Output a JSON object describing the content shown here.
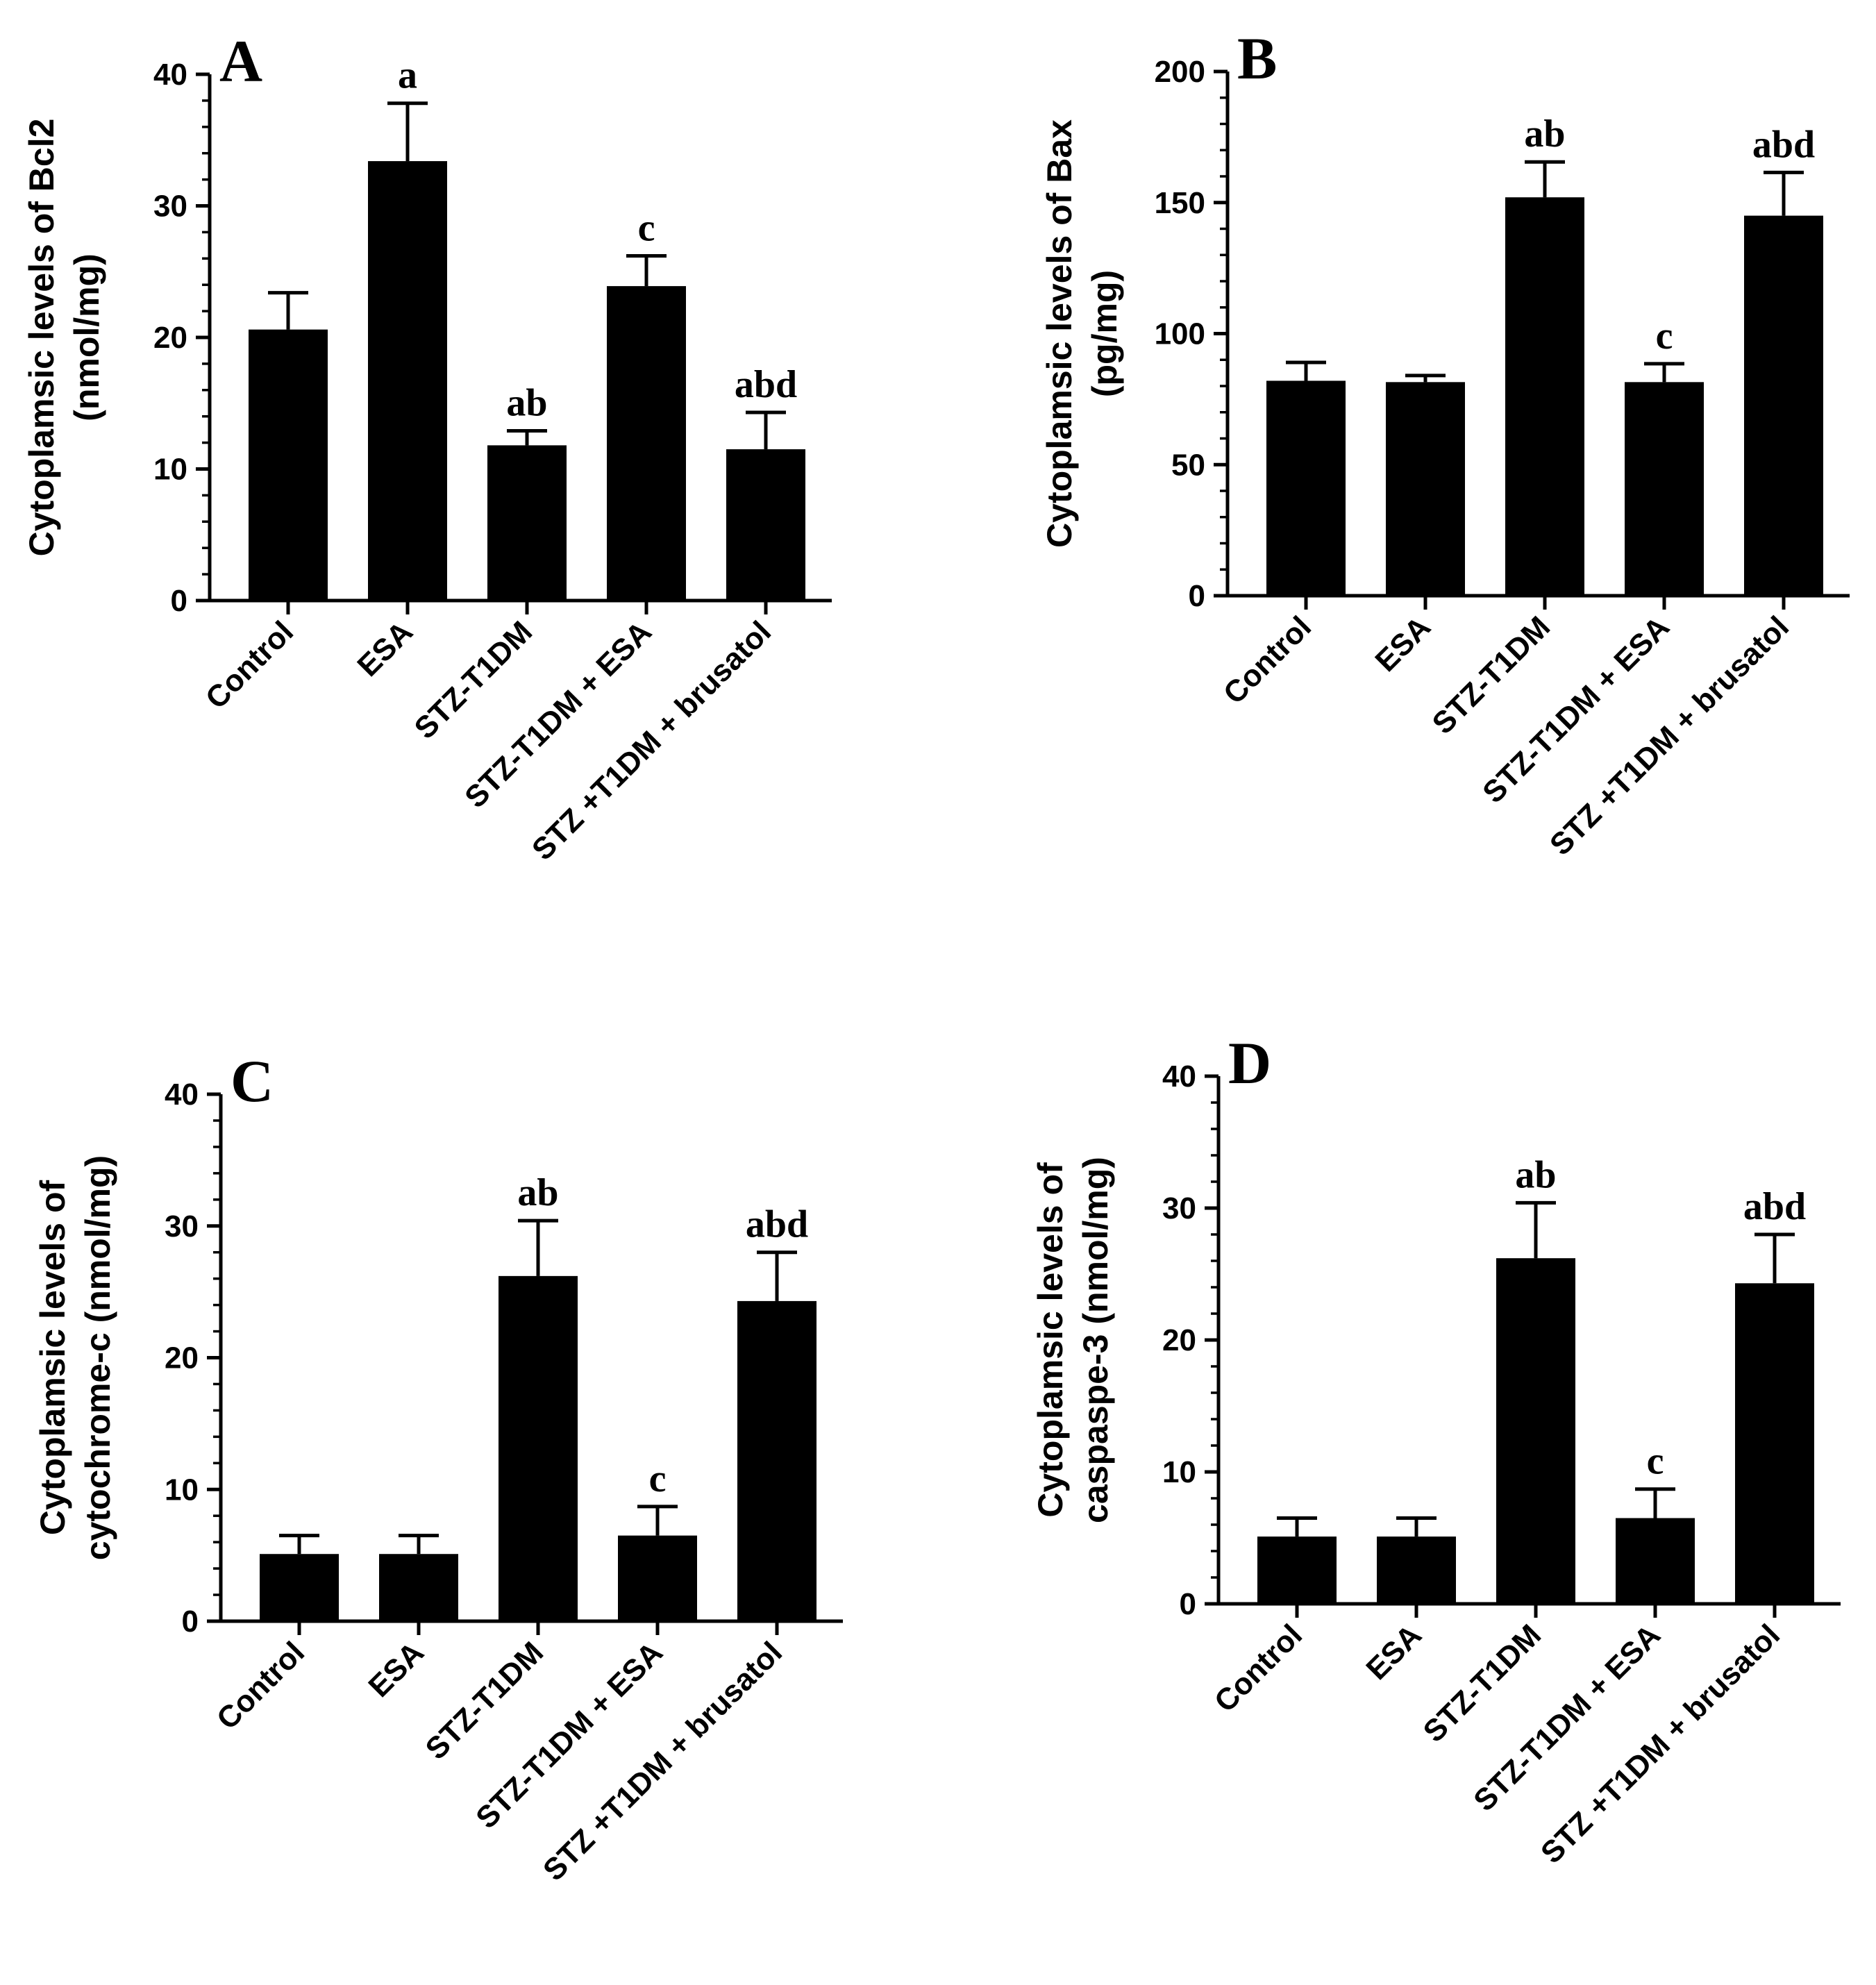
{
  "figure": {
    "categories": [
      "Control",
      "ESA",
      "STZ-T1DM",
      "STZ-T1DM + ESA",
      "STZ +T1DM + brusatol"
    ]
  },
  "chart_data": [
    {
      "type": "bar",
      "panel": "A",
      "ylabel_line1": "Cytoplamsic levels of Bcl2",
      "ylabel_line2": "(nmol/mg)",
      "ylim": [
        0,
        40
      ],
      "yticks": [
        0,
        10,
        20,
        30,
        40
      ],
      "categories": [
        "Control",
        "ESA",
        "STZ-T1DM",
        "STZ-T1DM + ESA",
        "STZ +T1DM + brusatol"
      ],
      "values": [
        20.6,
        33.4,
        11.8,
        23.9,
        11.5
      ],
      "errors": [
        2.8,
        4.4,
        1.1,
        2.3,
        2.8
      ],
      "annotations": [
        "",
        "a",
        "ab",
        "c",
        "abd"
      ]
    },
    {
      "type": "bar",
      "panel": "B",
      "ylabel_line1": "Cytoplamsic levels of Bax",
      "ylabel_line2": "(pg/mg)",
      "ylim": [
        0,
        200
      ],
      "yticks": [
        0,
        50,
        100,
        150,
        200
      ],
      "categories": [
        "Control",
        "ESA",
        "STZ-T1DM",
        "STZ-T1DM + ESA",
        "STZ +T1DM + brusatol"
      ],
      "values": [
        82,
        81.5,
        152,
        81.5,
        145
      ],
      "errors": [
        7,
        2.5,
        13.5,
        7,
        16.5
      ],
      "annotations": [
        "",
        "",
        "ab",
        "c",
        "abd"
      ]
    },
    {
      "type": "bar",
      "panel": "C",
      "ylabel_line1": "Cytoplamsic levels of",
      "ylabel_line2": "cytochrome-c (nmol/mg)",
      "ylim": [
        0,
        40
      ],
      "yticks": [
        0,
        10,
        20,
        30,
        40
      ],
      "categories": [
        "Control",
        "ESA",
        "STZ-T1DM",
        "STZ-T1DM + ESA",
        "STZ +T1DM + brusatol"
      ],
      "values": [
        5.1,
        5.1,
        26.2,
        6.5,
        24.3
      ],
      "errors": [
        1.4,
        1.4,
        4.2,
        2.2,
        3.7
      ],
      "annotations": [
        "",
        "",
        "ab",
        "c",
        "abd"
      ]
    },
    {
      "type": "bar",
      "panel": "D",
      "ylabel_line1": "Cytoplamsic levels of",
      "ylabel_line2": "caspaspe-3 (nmol/mg)",
      "ylim": [
        0,
        40
      ],
      "yticks": [
        0,
        10,
        20,
        30,
        40
      ],
      "categories": [
        "Control",
        "ESA",
        "STZ-T1DM",
        "STZ-T1DM + ESA",
        "STZ +T1DM + brusatol"
      ],
      "values": [
        5.1,
        5.1,
        26.2,
        6.5,
        24.3
      ],
      "errors": [
        1.4,
        1.4,
        4.2,
        2.2,
        3.7
      ],
      "annotations": [
        "",
        "",
        "ab",
        "c",
        "abd"
      ]
    }
  ]
}
